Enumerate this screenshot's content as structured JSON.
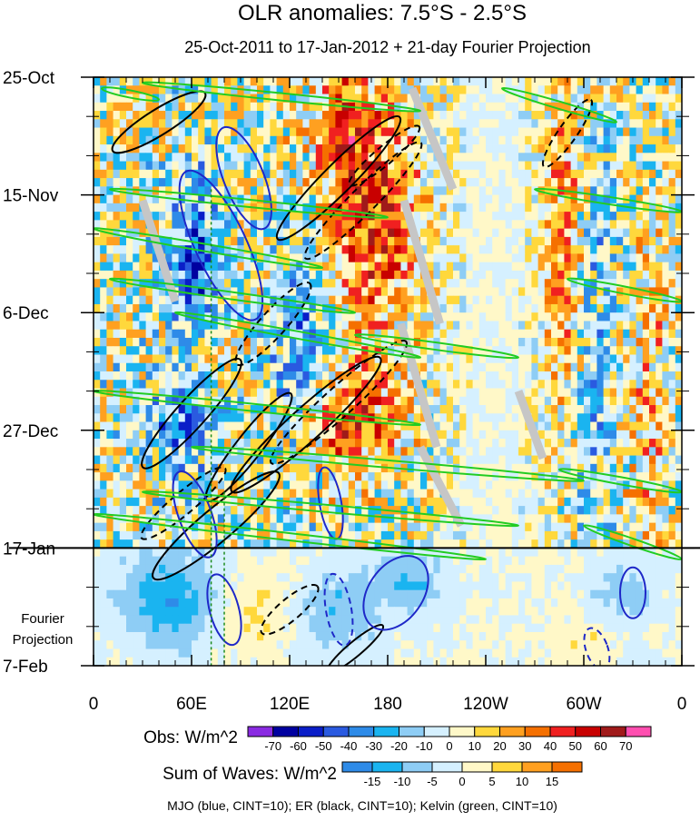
{
  "chart_data": {
    "type": "heatmap",
    "title": "OLR anomalies: 7.5°S - 2.5°S",
    "subtitle": "25-Oct-2011 to 17-Jan-2012 + 21-day Fourier Projection",
    "x_ticks": [
      "0",
      "60E",
      "120E",
      "180",
      "120W",
      "60W",
      "0"
    ],
    "x_tick_values": [
      0,
      60,
      120,
      180,
      240,
      300,
      360
    ],
    "xlim": [
      0,
      360
    ],
    "y_ticks": [
      "25-Oct",
      "15-Nov",
      "6-Dec",
      "27-Dec",
      "17-Jan",
      "7-Feb"
    ],
    "y_tick_days": [
      0,
      21,
      42,
      63,
      84,
      105
    ],
    "ylim_days": [
      0,
      105
    ],
    "observation_end_day": 84,
    "projection_label_lines": [
      "Fourier",
      "Projection"
    ],
    "obs_colorbar": {
      "label": "Obs: W/m^2",
      "levels": [
        -70,
        -60,
        -50,
        -40,
        -30,
        -20,
        -10,
        0,
        10,
        20,
        30,
        40,
        50,
        60,
        70
      ],
      "colors": [
        "#8a2be2",
        "#0000a0",
        "#0a1ec8",
        "#2a5ae0",
        "#2e8be8",
        "#1ab4f0",
        "#8ecdf5",
        "#d5f0ff",
        "#fff8c8",
        "#ffd83c",
        "#ffa020",
        "#f57000",
        "#f02020",
        "#c80000",
        "#a01a1a",
        "#ff4fb0"
      ]
    },
    "waves_colorbar": {
      "label": "Sum of Waves: W/m^2",
      "levels": [
        -15,
        -10,
        -5,
        0,
        5,
        10,
        15
      ],
      "colors": [
        "#2e8be8",
        "#1ab4f0",
        "#8ecdf5",
        "#d5f0ff",
        "#fff8c8",
        "#ffd83c",
        "#ffa020",
        "#f57000"
      ]
    },
    "contour_legend": "MJO (blue, CINT=10); ER (black, CINT=10); Kelvin (green, CINT=10)",
    "contour_colors": {
      "mjo": "#1e28c8",
      "er": "#000000",
      "kelvin": "#22cc22"
    }
  }
}
